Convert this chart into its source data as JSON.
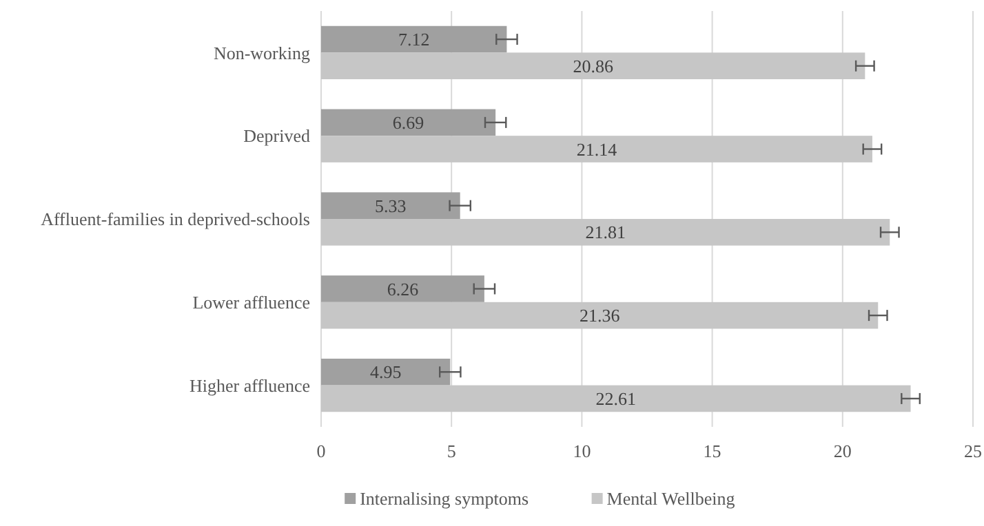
{
  "chart_data": {
    "type": "bar",
    "orientation": "horizontal",
    "categories": [
      "Non-working",
      "Deprived",
      "Affluent-families in deprived-schools",
      "Lower affluence",
      "Higher affluence"
    ],
    "series": [
      {
        "name": "Internalising symptoms",
        "color": "#a0a0a0",
        "values": [
          7.12,
          6.69,
          5.33,
          6.26,
          4.95
        ],
        "errors": [
          0.4,
          0.4,
          0.4,
          0.4,
          0.4
        ]
      },
      {
        "name": "Mental Wellbeing",
        "color": "#c6c6c6",
        "values": [
          20.86,
          21.14,
          21.81,
          21.36,
          22.61
        ],
        "errors": [
          0.35,
          0.35,
          0.35,
          0.35,
          0.35
        ]
      }
    ],
    "xlim": [
      0,
      25
    ],
    "xticks": [
      0,
      5,
      10,
      15,
      20,
      25
    ],
    "grid": "x",
    "legend": "bottom",
    "data_labels": true
  }
}
